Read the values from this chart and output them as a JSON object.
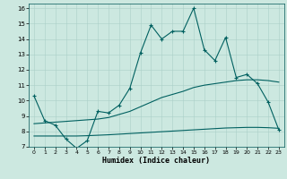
{
  "xlabel": "Humidex (Indice chaleur)",
  "xlim": [
    -0.5,
    23.5
  ],
  "ylim": [
    7,
    16.3
  ],
  "xticks": [
    0,
    1,
    2,
    3,
    4,
    5,
    6,
    7,
    8,
    9,
    10,
    11,
    12,
    13,
    14,
    15,
    16,
    17,
    18,
    19,
    20,
    21,
    22,
    23
  ],
  "yticks": [
    7,
    8,
    9,
    10,
    11,
    12,
    13,
    14,
    15,
    16
  ],
  "bg_color": "#cce8e0",
  "line_color": "#006060",
  "line1_x": [
    0,
    1,
    2,
    3,
    4,
    5,
    6,
    7,
    8,
    9,
    10,
    11,
    12,
    13,
    14,
    15,
    16,
    17,
    18,
    19,
    20,
    21,
    22,
    23
  ],
  "line1_y": [
    10.3,
    8.7,
    8.4,
    7.5,
    6.9,
    7.4,
    9.3,
    9.2,
    9.7,
    10.8,
    13.1,
    14.9,
    14.0,
    14.5,
    14.5,
    16.0,
    13.3,
    12.6,
    14.1,
    11.5,
    11.7,
    11.1,
    9.9,
    8.1
  ],
  "line2_x": [
    0,
    1,
    2,
    3,
    4,
    5,
    6,
    7,
    8,
    9,
    10,
    11,
    12,
    13,
    14,
    15,
    16,
    17,
    18,
    19,
    20,
    21,
    22,
    23
  ],
  "line2_y": [
    8.5,
    8.55,
    8.6,
    8.65,
    8.7,
    8.75,
    8.8,
    8.9,
    9.1,
    9.3,
    9.6,
    9.9,
    10.2,
    10.4,
    10.6,
    10.85,
    11.0,
    11.1,
    11.2,
    11.3,
    11.35,
    11.35,
    11.3,
    11.2
  ],
  "line3_x": [
    0,
    1,
    2,
    3,
    4,
    5,
    6,
    7,
    8,
    9,
    10,
    11,
    12,
    13,
    14,
    15,
    16,
    17,
    18,
    19,
    20,
    21,
    22,
    23
  ],
  "line3_y": [
    7.7,
    7.7,
    7.7,
    7.7,
    7.7,
    7.72,
    7.75,
    7.78,
    7.82,
    7.86,
    7.9,
    7.94,
    7.98,
    8.02,
    8.06,
    8.1,
    8.14,
    8.18,
    8.22,
    8.24,
    8.26,
    8.26,
    8.24,
    8.2
  ]
}
